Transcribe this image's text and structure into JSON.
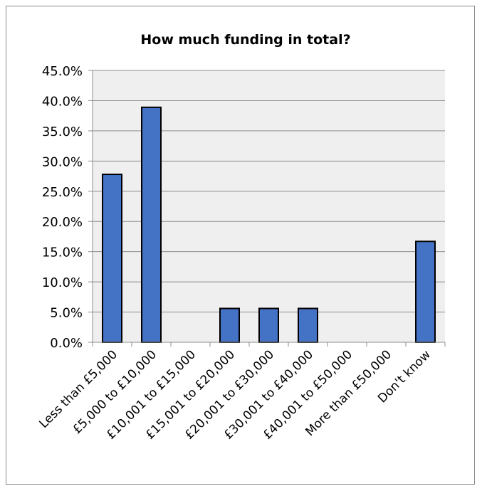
{
  "chart_data": {
    "type": "bar",
    "title": "How much funding in total?",
    "xlabel": "",
    "ylabel": "",
    "categories": [
      "Less than £5,000",
      "£5,000 to £10,000",
      "£10,001 to £15,000",
      "£15,001 to £20,000",
      "£20,001 to £30,000",
      "£30,001 to £40,000",
      "£40,001 to £50,000",
      "More than £50,000",
      "Don't know"
    ],
    "values": [
      27.8,
      38.9,
      0,
      5.6,
      5.6,
      5.6,
      0,
      0,
      16.7
    ],
    "ylim": [
      0,
      45
    ],
    "yticks": [
      "0.0%",
      "5.0%",
      "10.0%",
      "15.0%",
      "20.0%",
      "25.0%",
      "30.0%",
      "35.0%",
      "40.0%",
      "45.0%"
    ],
    "grid": true,
    "colors": {
      "bar": "#4472C4",
      "bar_border": "#000000",
      "plot_bg": "#EFEFEF",
      "grid": "#8C8C8C"
    }
  }
}
